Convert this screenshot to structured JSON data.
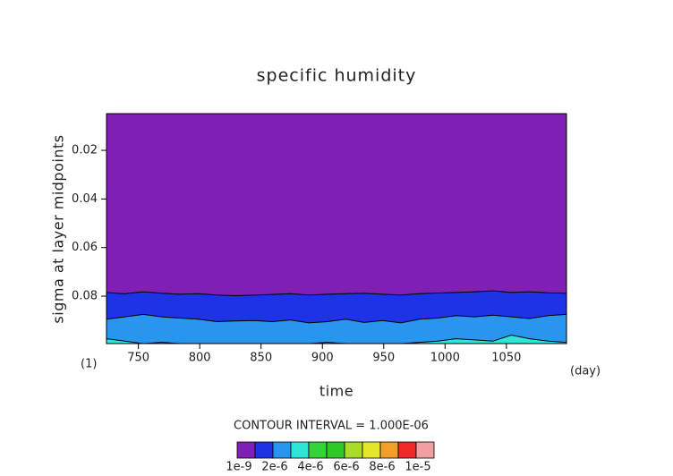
{
  "chart_data": {
    "type": "contour",
    "title": "specific humidity",
    "xlabel": "time",
    "ylabel": "sigma at layer midpoints",
    "x_unit": "(day)",
    "corner_label": "(1)",
    "contour_interval": "CONTOUR INTERVAL = 1.000E-06",
    "xlim": [
      724,
      1099
    ],
    "ylim": [
      0.0049,
      0.0995
    ],
    "y_inverted": true,
    "xticks": [
      750,
      800,
      850,
      900,
      950,
      1000,
      1050
    ],
    "yticks": [
      0.02,
      0.04,
      0.06,
      0.08
    ],
    "background_color": "#7f1fb4",
    "x": [
      724,
      739,
      754,
      769,
      784,
      799,
      814,
      829,
      844,
      859,
      874,
      889,
      904,
      919,
      934,
      949,
      964,
      979,
      994,
      1009,
      1024,
      1039,
      1054,
      1069,
      1084,
      1099
    ],
    "bands": [
      {
        "color": "#1e32e6",
        "values": [
          0.0785,
          0.079,
          0.0782,
          0.0788,
          0.0792,
          0.079,
          0.0795,
          0.0798,
          0.0796,
          0.0793,
          0.079,
          0.0795,
          0.0792,
          0.079,
          0.0788,
          0.0792,
          0.0795,
          0.079,
          0.0787,
          0.0785,
          0.0782,
          0.0778,
          0.0785,
          0.0782,
          0.0786,
          0.0788
        ]
      },
      {
        "color": "#2896ee",
        "values": [
          0.0895,
          0.0885,
          0.0875,
          0.0885,
          0.089,
          0.0895,
          0.0905,
          0.0902,
          0.09,
          0.0905,
          0.0898,
          0.091,
          0.0905,
          0.0895,
          0.0908,
          0.09,
          0.091,
          0.0895,
          0.089,
          0.088,
          0.0885,
          0.0878,
          0.0885,
          0.0892,
          0.088,
          0.0875
        ]
      },
      {
        "color": "#2ee6d8",
        "values": [
          0.0975,
          0.0985,
          0.0995,
          0.099,
          0.0995,
          0.0995,
          0.0995,
          0.0995,
          0.0995,
          0.0995,
          0.0995,
          0.0995,
          0.099,
          0.0995,
          0.0995,
          0.0995,
          0.0995,
          0.099,
          0.0985,
          0.0975,
          0.098,
          0.0985,
          0.096,
          0.0975,
          0.0985,
          0.099
        ]
      }
    ],
    "colorbar": {
      "colors": [
        "#7f1fb4",
        "#1e32e6",
        "#2896ee",
        "#2ee6d8",
        "#36d23c",
        "#2ec828",
        "#a8dc28",
        "#e6e628",
        "#f0a028",
        "#f02828",
        "#f0a0a0"
      ],
      "labels": [
        {
          "index": 0,
          "label": "1e-9"
        },
        {
          "index": 2,
          "label": "2e-6"
        },
        {
          "index": 4,
          "label": "4e-6"
        },
        {
          "index": 6,
          "label": "6e-6"
        },
        {
          "index": 8,
          "label": "8e-6"
        },
        {
          "index": 10,
          "label": "1e-5"
        }
      ]
    }
  }
}
